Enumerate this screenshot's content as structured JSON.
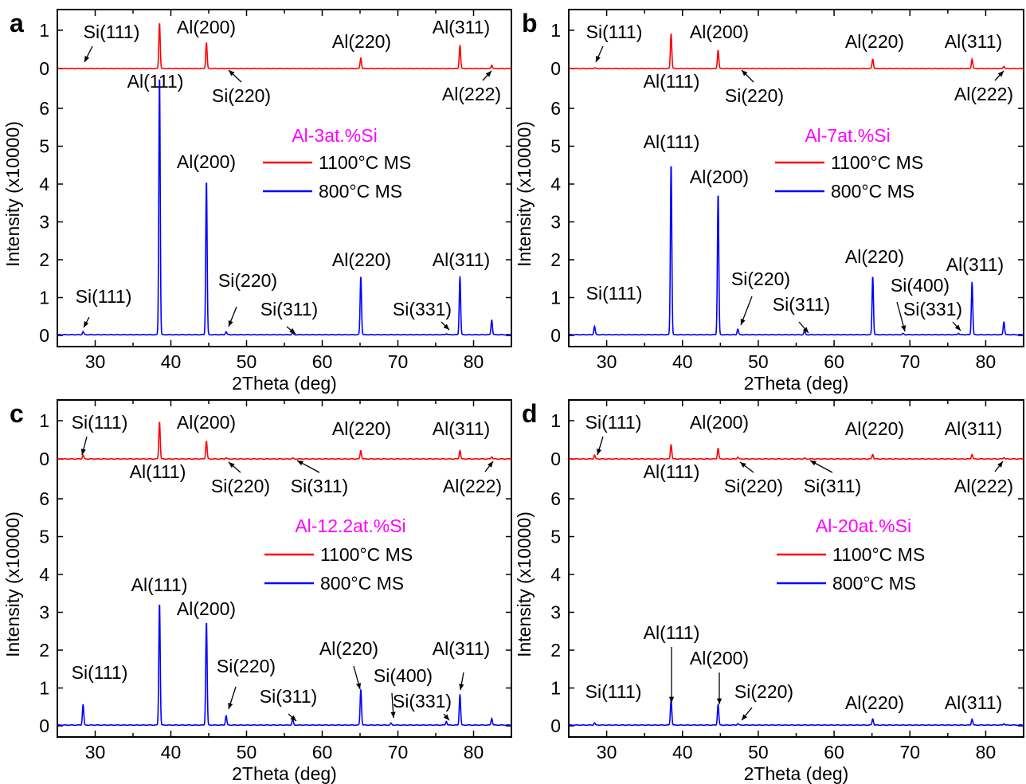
{
  "xlabel": "2Theta (deg)",
  "ylabel": "Intensity (x10000)",
  "chart_data": [
    {
      "panel": "a",
      "type": "line",
      "composition": "Al-3at.%Si",
      "xlabel": "2Theta (deg)",
      "ylabel": "Intensity (x10000)",
      "xlim": [
        25,
        85
      ],
      "x_ticks": [
        30,
        40,
        50,
        60,
        70,
        80
      ],
      "series": [
        {
          "name": "1100°C MS",
          "color": "#ff0000",
          "axis": "top",
          "ylim": [
            0,
            1.2
          ],
          "y_ticks": [
            0,
            1
          ],
          "peaks": [
            {
              "x": 28.4,
              "y": 0.0
            },
            {
              "x": 38.5,
              "y": 1.2
            },
            {
              "x": 44.7,
              "y": 0.68
            },
            {
              "x": 47.3,
              "y": 0.0
            },
            {
              "x": 65.1,
              "y": 0.28
            },
            {
              "x": 78.2,
              "y": 0.62
            },
            {
              "x": 82.4,
              "y": 0.09
            }
          ]
        },
        {
          "name": "800°C   MS",
          "color": "#0000ff",
          "axis": "bottom",
          "ylim": [
            0,
            7
          ],
          "y_ticks": [
            0,
            1,
            2,
            3,
            4,
            5,
            6
          ],
          "peaks": [
            {
              "x": 28.4,
              "y": 0.08
            },
            {
              "x": 38.5,
              "y": 6.9
            },
            {
              "x": 44.7,
              "y": 4.1
            },
            {
              "x": 47.3,
              "y": 0.08
            },
            {
              "x": 56.1,
              "y": 0.05
            },
            {
              "x": 65.1,
              "y": 1.55
            },
            {
              "x": 76.4,
              "y": 0.03
            },
            {
              "x": 78.2,
              "y": 1.55
            },
            {
              "x": 82.4,
              "y": 0.4
            }
          ]
        }
      ],
      "annotations": [
        "Si(111)",
        "Al(200)",
        "Al(220)",
        "Al(311)",
        "Al(111)",
        "Si(220)",
        "Al(222)",
        "Al(200)",
        "Al(220)",
        "Al(311)",
        "Si(220)",
        "Si(111)",
        "Si(311)",
        "Si(331)"
      ]
    },
    {
      "panel": "b",
      "type": "line",
      "composition": "Al-7at.%Si",
      "xlabel": "2Theta (deg)",
      "ylabel": "Intensity (x10000)",
      "xlim": [
        25,
        85
      ],
      "x_ticks": [
        30,
        40,
        50,
        60,
        70,
        80
      ],
      "series": [
        {
          "name": "1100°C MS",
          "color": "#ff0000",
          "axis": "top",
          "ylim": [
            0,
            1.2
          ],
          "y_ticks": [
            0,
            1
          ],
          "peaks": [
            {
              "x": 28.4,
              "y": 0.02
            },
            {
              "x": 38.5,
              "y": 0.92
            },
            {
              "x": 44.7,
              "y": 0.48
            },
            {
              "x": 47.3,
              "y": 0.0
            },
            {
              "x": 65.1,
              "y": 0.25
            },
            {
              "x": 78.2,
              "y": 0.25
            },
            {
              "x": 82.4,
              "y": 0.06
            }
          ]
        },
        {
          "name": "800°C   MS",
          "color": "#0000ff",
          "axis": "bottom",
          "ylim": [
            0,
            7
          ],
          "y_ticks": [
            0,
            1,
            2,
            3,
            4,
            5,
            6
          ],
          "peaks": [
            {
              "x": 28.4,
              "y": 0.22
            },
            {
              "x": 38.5,
              "y": 4.55
            },
            {
              "x": 44.7,
              "y": 3.75
            },
            {
              "x": 47.3,
              "y": 0.15
            },
            {
              "x": 56.1,
              "y": 0.1
            },
            {
              "x": 65.1,
              "y": 1.55
            },
            {
              "x": 69.1,
              "y": 0.03
            },
            {
              "x": 76.4,
              "y": 0.04
            },
            {
              "x": 78.2,
              "y": 1.4
            },
            {
              "x": 82.4,
              "y": 0.35
            }
          ]
        }
      ],
      "annotations": [
        "Si(111)",
        "Al(200)",
        "Al(220)",
        "Al(311)",
        "Al(111)",
        "Si(220)",
        "Al(222)",
        "Al(111)",
        "Al(200)",
        "Al(220)",
        "Al(311)",
        "Si(220)",
        "Si(400)",
        "Si(111)",
        "Si(311)",
        "Si(331)"
      ]
    },
    {
      "panel": "c",
      "type": "line",
      "composition": "Al-12.2at.%Si",
      "xlabel": "2Theta (deg)",
      "ylabel": "Intensity (x10000)",
      "xlim": [
        25,
        85
      ],
      "x_ticks": [
        30,
        40,
        50,
        60,
        70,
        80
      ],
      "series": [
        {
          "name": "1100°C MS",
          "color": "#ff0000",
          "axis": "top",
          "ylim": [
            0,
            1.2
          ],
          "y_ticks": [
            0,
            1
          ],
          "peaks": [
            {
              "x": 28.4,
              "y": 0.1
            },
            {
              "x": 38.5,
              "y": 0.98
            },
            {
              "x": 44.7,
              "y": 0.47
            },
            {
              "x": 47.3,
              "y": 0.03
            },
            {
              "x": 56.1,
              "y": 0.02
            },
            {
              "x": 65.1,
              "y": 0.22
            },
            {
              "x": 78.2,
              "y": 0.22
            },
            {
              "x": 82.4,
              "y": 0.06
            }
          ]
        },
        {
          "name": "800°C   MS",
          "color": "#0000ff",
          "axis": "bottom",
          "ylim": [
            0,
            7
          ],
          "y_ticks": [
            0,
            1,
            2,
            3,
            4,
            5,
            6
          ],
          "peaks": [
            {
              "x": 28.4,
              "y": 0.55
            },
            {
              "x": 38.5,
              "y": 3.25
            },
            {
              "x": 44.7,
              "y": 2.75
            },
            {
              "x": 47.3,
              "y": 0.25
            },
            {
              "x": 56.1,
              "y": 0.15
            },
            {
              "x": 65.1,
              "y": 0.95
            },
            {
              "x": 69.1,
              "y": 0.05
            },
            {
              "x": 76.4,
              "y": 0.1
            },
            {
              "x": 78.2,
              "y": 0.82
            },
            {
              "x": 82.4,
              "y": 0.18
            }
          ]
        }
      ],
      "annotations": [
        "Si(111)",
        "Al(200)",
        "Al(220)",
        "Al(311)",
        "Al(111)",
        "Si(220)",
        "Si(311)",
        "Al(222)",
        "Al(111)",
        "Al(200)",
        "Si(220)",
        "Al(220)",
        "Al(311)",
        "Si(400)",
        "Si(111)",
        "Si(311)",
        "Si(331)"
      ]
    },
    {
      "panel": "d",
      "type": "line",
      "composition": "Al-20at.%Si",
      "xlabel": "2Theta (deg)",
      "ylabel": "Intensity (x10000)",
      "xlim": [
        25,
        85
      ],
      "x_ticks": [
        30,
        40,
        50,
        60,
        70,
        80
      ],
      "series": [
        {
          "name": "1100°C MS",
          "color": "#ff0000",
          "axis": "top",
          "ylim": [
            0,
            1.2
          ],
          "y_ticks": [
            0,
            1
          ],
          "peaks": [
            {
              "x": 28.4,
              "y": 0.1
            },
            {
              "x": 38.5,
              "y": 0.38
            },
            {
              "x": 44.7,
              "y": 0.28
            },
            {
              "x": 47.3,
              "y": 0.05
            },
            {
              "x": 56.1,
              "y": 0.02
            },
            {
              "x": 65.1,
              "y": 0.12
            },
            {
              "x": 78.2,
              "y": 0.12
            },
            {
              "x": 82.4,
              "y": 0.04
            }
          ]
        },
        {
          "name": "800°C   MS",
          "color": "#0000ff",
          "axis": "bottom",
          "ylim": [
            0,
            7
          ],
          "y_ticks": [
            0,
            1,
            2,
            3,
            4,
            5,
            6
          ],
          "peaks": [
            {
              "x": 28.4,
              "y": 0.06
            },
            {
              "x": 38.5,
              "y": 0.68
            },
            {
              "x": 44.7,
              "y": 0.55
            },
            {
              "x": 47.3,
              "y": 0.04
            },
            {
              "x": 65.1,
              "y": 0.17
            },
            {
              "x": 78.2,
              "y": 0.16
            },
            {
              "x": 82.4,
              "y": 0.04
            }
          ]
        }
      ],
      "annotations": [
        "Si(111)",
        "Al(200)",
        "Al(220)",
        "Al(311)",
        "Al(111)",
        "Si(220)",
        "Si(311)",
        "Al(222)",
        "Al(111)",
        "Al(200)",
        "Si(220)",
        "Si(111)",
        "Al(220)",
        "Al(311)"
      ]
    }
  ]
}
